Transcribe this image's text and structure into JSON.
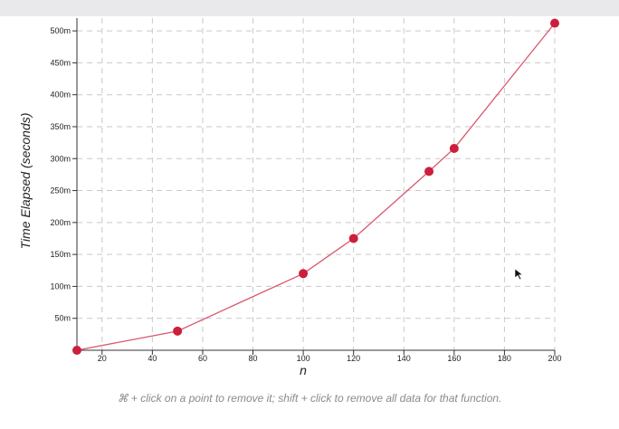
{
  "chart_data": {
    "type": "line",
    "xlabel": "n",
    "ylabel": "Time Elapsed (seconds)",
    "xlim": [
      10,
      200
    ],
    "ylim": [
      0,
      520
    ],
    "x_ticks": [
      20,
      40,
      60,
      80,
      100,
      120,
      140,
      160,
      180,
      200
    ],
    "y_ticks": [
      50,
      100,
      150,
      200,
      250,
      300,
      350,
      400,
      450,
      500
    ],
    "y_tick_labels": [
      "50m",
      "100m",
      "150m",
      "200m",
      "250m",
      "300m",
      "350m",
      "400m",
      "450m",
      "500m"
    ],
    "grid": true,
    "series": [
      {
        "x": [
          10,
          50,
          100,
          120,
          150,
          160,
          200
        ],
        "y": [
          0,
          30,
          120,
          175,
          280,
          316,
          512
        ],
        "color": "#cc1f3b",
        "line_color": "#d9576d"
      }
    ]
  },
  "hint_text": "⌘ + click on a point to remove it; shift + click to remove all data for that function.",
  "icons": {
    "cursor": "arrow-cursor-icon"
  }
}
